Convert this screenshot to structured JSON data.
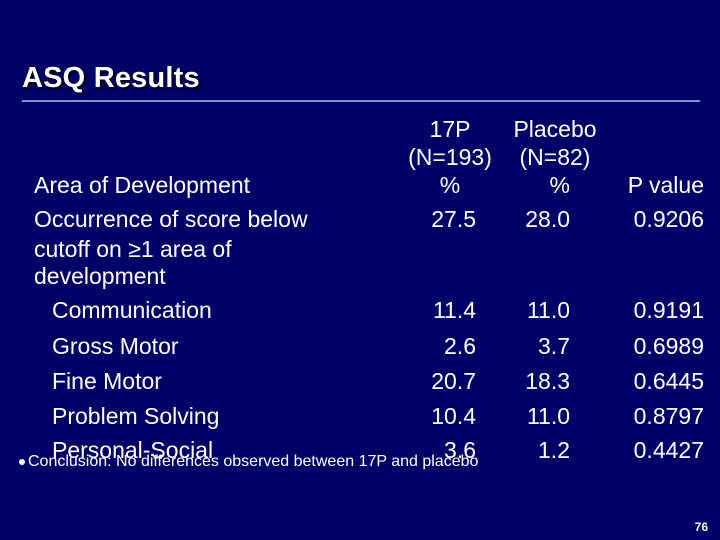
{
  "title": "ASQ Results",
  "columns": {
    "group1": [
      "17P",
      "(N=193)",
      "%"
    ],
    "group2": [
      "Placebo",
      "(N=82)",
      "%"
    ],
    "pvalue": "P value"
  },
  "row_header": "Area of Development",
  "overall": {
    "label_lines": [
      "Occurrence of score below",
      "cutoff on ≥1 area of",
      "development"
    ],
    "p17": "27.5",
    "placebo": "28.0",
    "p": "0.9206"
  },
  "areas": [
    {
      "label": "Communication",
      "p17": "11.4",
      "placebo": "11.0",
      "p": "0.9191"
    },
    {
      "label": "Gross Motor",
      "p17": "2.6",
      "placebo": "3.7",
      "p": "0.6989"
    },
    {
      "label": "Fine Motor",
      "p17": "20.7",
      "placebo": "18.3",
      "p": "0.6445"
    },
    {
      "label": "Problem Solving",
      "p17": "10.4",
      "placebo": "11.0",
      "p": "0.8797"
    },
    {
      "label": "Personal-Social",
      "p17": "3.6",
      "placebo": "1.2",
      "p": "0.4427"
    }
  ],
  "conclusion": "Conclusion: No differences observed between 17P and placebo",
  "page_number": "76",
  "colors": {
    "background": "#000066",
    "text": "#ffffff",
    "rule": "#8e8ecf"
  }
}
